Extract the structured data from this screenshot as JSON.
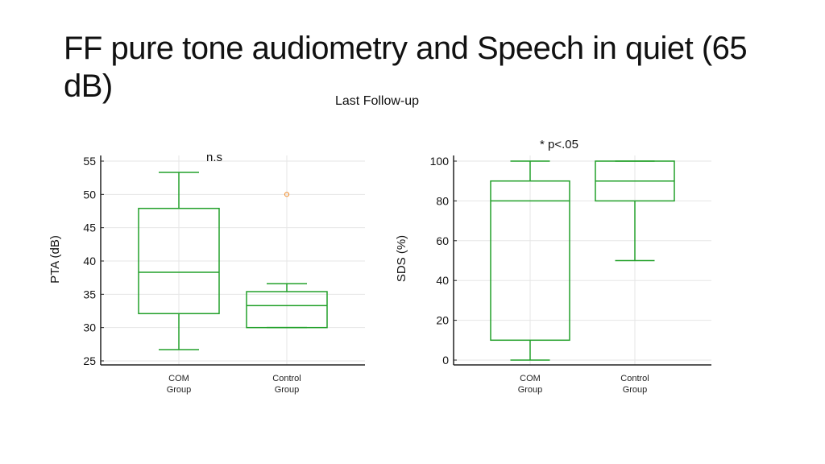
{
  "slide": {
    "title": "FF pure tone audiometry and Speech in quiet (65 dB)",
    "subtitle": "Last Follow-up"
  },
  "colors": {
    "box": "#22a02a",
    "outlier": "#f28c28",
    "grid": "#e6e6e6",
    "axis": "#222222"
  },
  "chart_data": [
    {
      "type": "box",
      "annotation": "n.s",
      "ylabel": "PTA (dB)",
      "ylim": [
        25,
        55
      ],
      "yticks": [
        25,
        30,
        35,
        40,
        45,
        50,
        55
      ],
      "grid": true,
      "categories": [
        "COM Group",
        "Control Group"
      ],
      "series": [
        {
          "whisker_low": 26.7,
          "q1": 32.1,
          "median": 38.3,
          "q3": 47.9,
          "whisker_high": 53.3,
          "outliers": []
        },
        {
          "whisker_low": 30.0,
          "q1": 30.0,
          "median": 33.3,
          "q3": 35.4,
          "whisker_high": 36.6,
          "outliers": [
            50
          ]
        }
      ]
    },
    {
      "type": "box",
      "annotation": "* p<.05",
      "ylabel": "SDS (%)",
      "ylim": [
        0,
        100
      ],
      "yticks": [
        0,
        20,
        40,
        60,
        80,
        100
      ],
      "grid": true,
      "categories": [
        "COM Group",
        "Control Group"
      ],
      "series": [
        {
          "whisker_low": 0,
          "q1": 10,
          "median": 80,
          "q3": 90,
          "whisker_high": 100,
          "outliers": []
        },
        {
          "whisker_low": 50,
          "q1": 80,
          "median": 90,
          "q3": 100,
          "whisker_high": 100,
          "outliers": []
        }
      ]
    }
  ]
}
